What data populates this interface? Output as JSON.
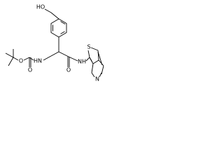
{
  "atoms": [
    {
      "label": "HO"
    },
    {
      "label": "HN"
    },
    {
      "label": "O"
    },
    {
      "label": "O"
    },
    {
      "label": "O"
    },
    {
      "label": "NH"
    },
    {
      "label": "S"
    },
    {
      "label": "N"
    }
  ]
}
